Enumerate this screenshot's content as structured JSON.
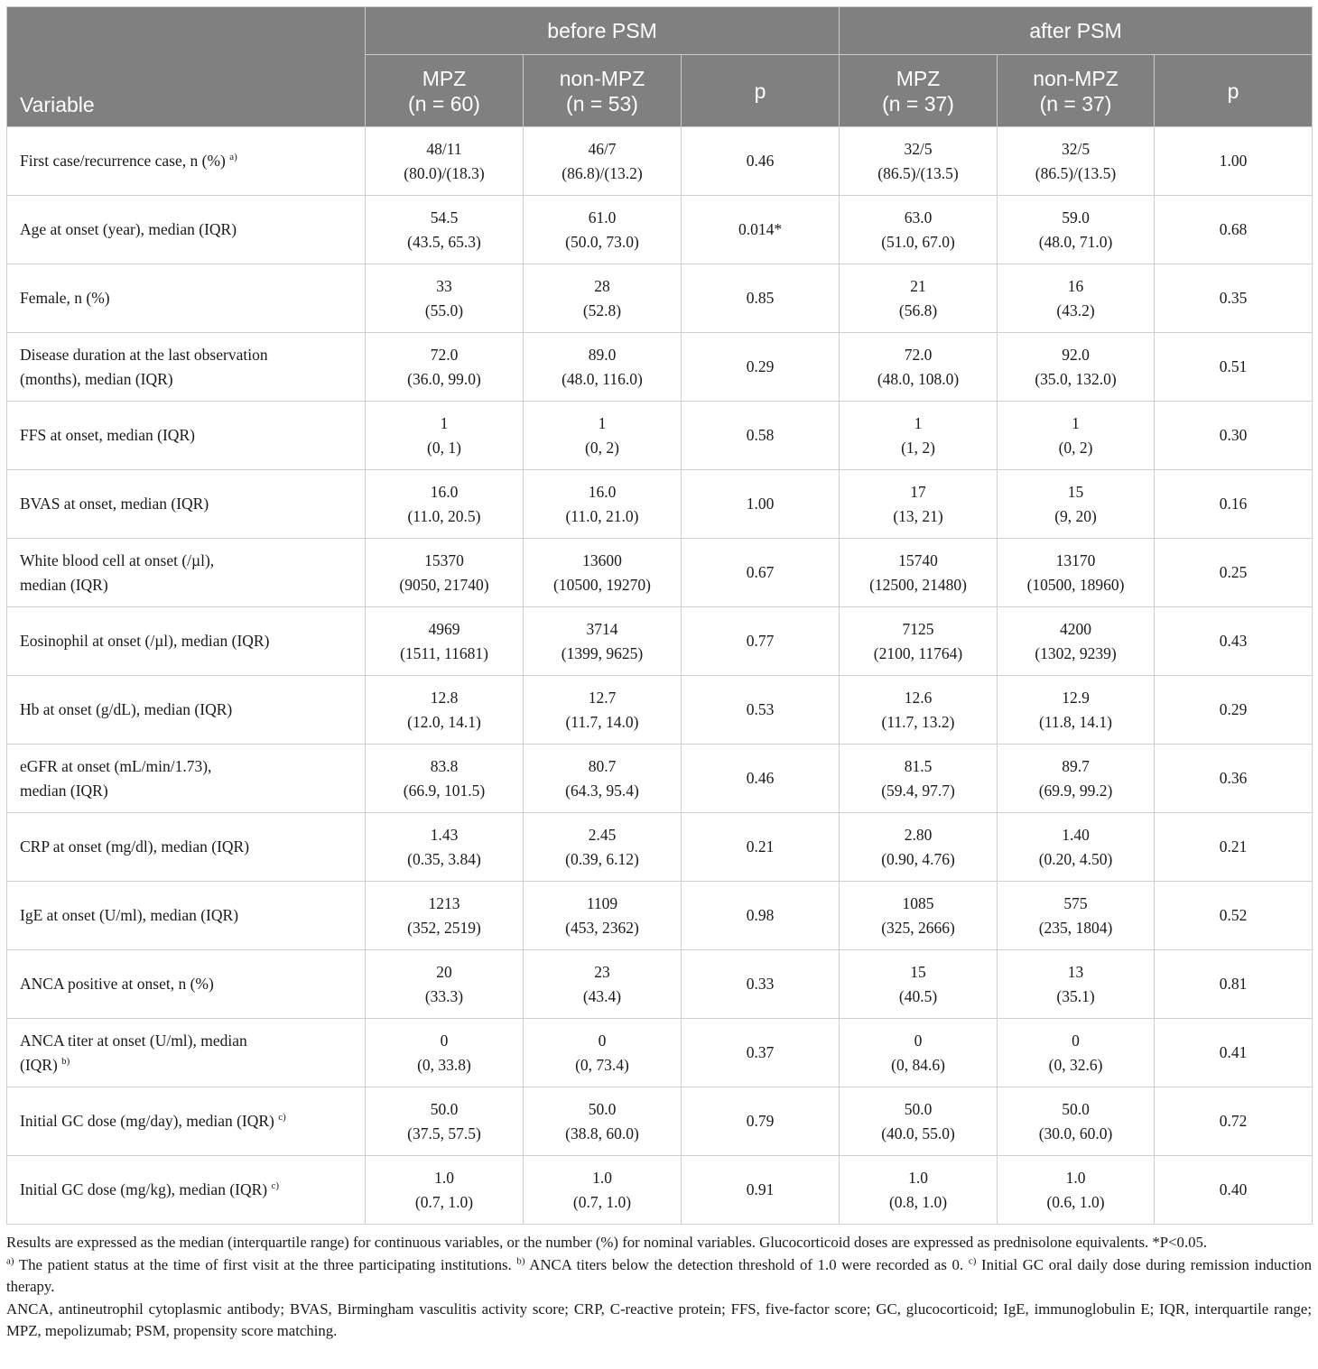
{
  "table": {
    "variable_header": "Variable",
    "groups": [
      "before PSM",
      "after PSM"
    ],
    "subheaders": [
      [
        "MPZ",
        "(n = 60)"
      ],
      [
        "non-MPZ",
        "(n = 53)"
      ],
      [
        "p"
      ],
      [
        "MPZ",
        "(n = 37)"
      ],
      [
        "non-MPZ",
        "(n = 37)"
      ],
      [
        "p"
      ]
    ],
    "rows": [
      {
        "label": [
          "First case/recurrence case, n (%)"
        ],
        "sup": "a)",
        "cells": [
          [
            "48/11",
            "(80.0)/(18.3)"
          ],
          [
            "46/7",
            "(86.8)/(13.2)"
          ],
          [
            "0.46"
          ],
          [
            "32/5",
            "(86.5)/(13.5)"
          ],
          [
            "32/5",
            "(86.5)/(13.5)"
          ],
          [
            "1.00"
          ]
        ]
      },
      {
        "label": [
          "Age at onset (year), median (IQR)"
        ],
        "sup": "",
        "cells": [
          [
            "54.5",
            "(43.5, 65.3)"
          ],
          [
            "61.0",
            "(50.0, 73.0)"
          ],
          [
            "0.014*"
          ],
          [
            "63.0",
            "(51.0, 67.0)"
          ],
          [
            "59.0",
            "(48.0, 71.0)"
          ],
          [
            "0.68"
          ]
        ]
      },
      {
        "label": [
          "Female, n (%)"
        ],
        "sup": "",
        "cells": [
          [
            "33",
            "(55.0)"
          ],
          [
            "28",
            "(52.8)"
          ],
          [
            "0.85"
          ],
          [
            "21",
            "(56.8)"
          ],
          [
            "16",
            "(43.2)"
          ],
          [
            "0.35"
          ]
        ]
      },
      {
        "label": [
          "Disease duration at the last observation",
          "(months), median (IQR)"
        ],
        "sup": "",
        "cells": [
          [
            "72.0",
            "(36.0, 99.0)"
          ],
          [
            "89.0",
            "(48.0, 116.0)"
          ],
          [
            "0.29"
          ],
          [
            "72.0",
            "(48.0, 108.0)"
          ],
          [
            "92.0",
            "(35.0, 132.0)"
          ],
          [
            "0.51"
          ]
        ]
      },
      {
        "label": [
          "FFS at onset, median (IQR)"
        ],
        "sup": "",
        "cells": [
          [
            "1",
            "(0, 1)"
          ],
          [
            "1",
            "(0, 2)"
          ],
          [
            "0.58"
          ],
          [
            "1",
            "(1, 2)"
          ],
          [
            "1",
            "(0, 2)"
          ],
          [
            "0.30"
          ]
        ]
      },
      {
        "label": [
          "BVAS at onset, median (IQR)"
        ],
        "sup": "",
        "cells": [
          [
            "16.0",
            "(11.0, 20.5)"
          ],
          [
            "16.0",
            "(11.0, 21.0)"
          ],
          [
            "1.00"
          ],
          [
            "17",
            "(13, 21)"
          ],
          [
            "15",
            "(9, 20)"
          ],
          [
            "0.16"
          ]
        ]
      },
      {
        "label": [
          "White blood cell at onset (/µl),",
          "median (IQR)"
        ],
        "sup": "",
        "cells": [
          [
            "15370",
            "(9050, 21740)"
          ],
          [
            "13600",
            "(10500, 19270)"
          ],
          [
            "0.67"
          ],
          [
            "15740",
            "(12500, 21480)"
          ],
          [
            "13170",
            "(10500, 18960)"
          ],
          [
            "0.25"
          ]
        ]
      },
      {
        "label": [
          "Eosinophil at onset (/µl), median (IQR)"
        ],
        "sup": "",
        "cells": [
          [
            "4969",
            "(1511, 11681)"
          ],
          [
            "3714",
            "(1399, 9625)"
          ],
          [
            "0.77"
          ],
          [
            "7125",
            "(2100, 11764)"
          ],
          [
            "4200",
            "(1302, 9239)"
          ],
          [
            "0.43"
          ]
        ]
      },
      {
        "label": [
          "Hb at onset (g/dL), median (IQR)"
        ],
        "sup": "",
        "cells": [
          [
            "12.8",
            "(12.0, 14.1)"
          ],
          [
            "12.7",
            "(11.7, 14.0)"
          ],
          [
            "0.53"
          ],
          [
            "12.6",
            "(11.7, 13.2)"
          ],
          [
            "12.9",
            "(11.8, 14.1)"
          ],
          [
            "0.29"
          ]
        ]
      },
      {
        "label": [
          "eGFR at onset (mL/min/1.73),",
          "median (IQR)"
        ],
        "sup": "",
        "cells": [
          [
            "83.8",
            "(66.9, 101.5)"
          ],
          [
            "80.7",
            "(64.3, 95.4)"
          ],
          [
            "0.46"
          ],
          [
            "81.5",
            "(59.4, 97.7)"
          ],
          [
            "89.7",
            "(69.9, 99.2)"
          ],
          [
            "0.36"
          ]
        ]
      },
      {
        "label": [
          "CRP at onset (mg/dl), median (IQR)"
        ],
        "sup": "",
        "cells": [
          [
            "1.43",
            "(0.35, 3.84)"
          ],
          [
            "2.45",
            "(0.39, 6.12)"
          ],
          [
            "0.21"
          ],
          [
            "2.80",
            "(0.90, 4.76)"
          ],
          [
            "1.40",
            "(0.20, 4.50)"
          ],
          [
            "0.21"
          ]
        ]
      },
      {
        "label": [
          "IgE at onset (U/ml), median (IQR)"
        ],
        "sup": "",
        "cells": [
          [
            "1213",
            "(352, 2519)"
          ],
          [
            "1109",
            "(453, 2362)"
          ],
          [
            "0.98"
          ],
          [
            "1085",
            "(325, 2666)"
          ],
          [
            "575",
            "(235, 1804)"
          ],
          [
            "0.52"
          ]
        ]
      },
      {
        "label": [
          "ANCA positive at onset, n (%)"
        ],
        "sup": "",
        "cells": [
          [
            "20",
            "(33.3)"
          ],
          [
            "23",
            "(43.4)"
          ],
          [
            "0.33"
          ],
          [
            "15",
            "(40.5)"
          ],
          [
            "13",
            "(35.1)"
          ],
          [
            "0.81"
          ]
        ]
      },
      {
        "label": [
          "ANCA titer at onset (U/ml), median",
          "(IQR)"
        ],
        "sup": "b)",
        "cells": [
          [
            "0",
            "(0, 33.8)"
          ],
          [
            "0",
            "(0, 73.4)"
          ],
          [
            "0.37"
          ],
          [
            "0",
            "(0, 84.6)"
          ],
          [
            "0",
            "(0, 32.6)"
          ],
          [
            "0.41"
          ]
        ]
      },
      {
        "label": [
          "Initial GC dose (mg/day), median (IQR)"
        ],
        "sup": "c)",
        "cells": [
          [
            "50.0",
            "(37.5, 57.5)"
          ],
          [
            "50.0",
            "(38.8, 60.0)"
          ],
          [
            "0.79"
          ],
          [
            "50.0",
            "(40.0, 55.0)"
          ],
          [
            "50.0",
            "(30.0, 60.0)"
          ],
          [
            "0.72"
          ]
        ]
      },
      {
        "label": [
          "Initial GC dose (mg/kg), median (IQR)"
        ],
        "sup": "c)",
        "cells": [
          [
            "1.0",
            "(0.7, 1.0)"
          ],
          [
            "1.0",
            "(0.7, 1.0)"
          ],
          [
            "0.91"
          ],
          [
            "1.0",
            "(0.8, 1.0)"
          ],
          [
            "1.0",
            "(0.6, 1.0)"
          ],
          [
            "0.40"
          ]
        ]
      }
    ]
  },
  "footnotes": {
    "results": "Results are expressed as the median (interquartile range) for continuous variables, or the number (%) for nominal variables. Glucocorticoid doses are expressed as prednisolone equivalents. *P<0.05.",
    "a_mark": "a)",
    "a_text": " The patient status at the time of first visit at the three participating institutions. ",
    "b_mark": "b)",
    "b_text": " ANCA titers below the detection threshold of 1.0 were recorded as 0. ",
    "c_mark": "c)",
    "c_text": " Initial GC oral daily dose during remission induction therapy.",
    "abbreviations": "ANCA, antineutrophil cytoplasmic antibody; BVAS, Birmingham vasculitis activity score; CRP, C-reactive protein; FFS, five-factor score; GC, glucocorticoid; IgE, immunoglobulin E; IQR, interquartile range; MPZ, mepolizumab; PSM, propensity score matching."
  }
}
